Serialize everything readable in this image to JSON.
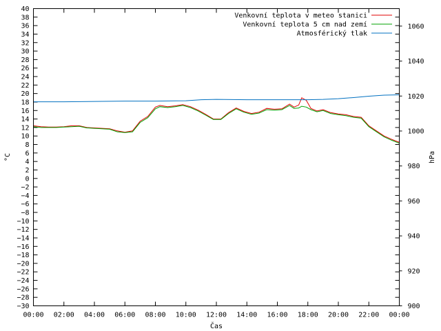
{
  "chart_data": {
    "type": "line",
    "title": "",
    "xlabel": "Čas",
    "ylabel": "°C",
    "y2label": "hPa",
    "x_ticks": [
      "00:00",
      "02:00",
      "04:00",
      "06:00",
      "08:00",
      "10:00",
      "12:00",
      "14:00",
      "16:00",
      "18:00",
      "20:00",
      "22:00",
      "00:00"
    ],
    "y_ticks": [
      40,
      38,
      36,
      34,
      32,
      30,
      28,
      26,
      24,
      22,
      20,
      18,
      16,
      14,
      12,
      10,
      8,
      6,
      4,
      2,
      0,
      -2,
      -4,
      -6,
      -8,
      -10,
      -12,
      -14,
      -16,
      -18,
      -20,
      -22,
      -24,
      -26,
      -28,
      -30
    ],
    "y2_ticks": [
      1060,
      1040,
      1020,
      1000,
      980,
      960,
      940,
      920,
      900
    ],
    "xlim_hours": [
      0,
      24
    ],
    "ylim": [
      -30,
      40
    ],
    "y2lim": [
      900,
      1070
    ],
    "legend_position": "top-right",
    "series": [
      {
        "name": "Venkovní teplota v meteo stanici",
        "axis": "left",
        "color": "#e00000",
        "points": [
          [
            0,
            12.4
          ],
          [
            0.5,
            12.2
          ],
          [
            1,
            12.1
          ],
          [
            1.5,
            12.1
          ],
          [
            2,
            12.2
          ],
          [
            2.5,
            12.4
          ],
          [
            3,
            12.4
          ],
          [
            3.5,
            12.0
          ],
          [
            4,
            11.9
          ],
          [
            4.5,
            11.8
          ],
          [
            5,
            11.7
          ],
          [
            5.5,
            11.2
          ],
          [
            6,
            10.9
          ],
          [
            6.5,
            11.2
          ],
          [
            7,
            13.5
          ],
          [
            7.5,
            14.6
          ],
          [
            8,
            16.8
          ],
          [
            8.3,
            17.2
          ],
          [
            8.8,
            16.9
          ],
          [
            9.3,
            17.1
          ],
          [
            9.8,
            17.4
          ],
          [
            10.3,
            16.9
          ],
          [
            10.8,
            16.1
          ],
          [
            11.3,
            15.1
          ],
          [
            11.8,
            14.0
          ],
          [
            12.3,
            14.0
          ],
          [
            12.8,
            15.5
          ],
          [
            13.3,
            16.6
          ],
          [
            13.8,
            15.8
          ],
          [
            14.3,
            15.3
          ],
          [
            14.8,
            15.6
          ],
          [
            15.3,
            16.5
          ],
          [
            15.8,
            16.3
          ],
          [
            16.3,
            16.4
          ],
          [
            16.8,
            17.5
          ],
          [
            17.1,
            16.8
          ],
          [
            17.4,
            17.3
          ],
          [
            17.6,
            19.0
          ],
          [
            17.9,
            18.4
          ],
          [
            18.2,
            16.5
          ],
          [
            18.6,
            15.9
          ],
          [
            19,
            16.2
          ],
          [
            19.5,
            15.5
          ],
          [
            20,
            15.2
          ],
          [
            20.5,
            15.0
          ],
          [
            21,
            14.6
          ],
          [
            21.5,
            14.4
          ],
          [
            22,
            12.4
          ],
          [
            22.5,
            11.2
          ],
          [
            23,
            10.0
          ],
          [
            23.5,
            9.2
          ],
          [
            24,
            8.5
          ]
        ]
      },
      {
        "name": "Venkovní teplota 5 cm nad zemí",
        "axis": "left",
        "color": "#00a000",
        "points": [
          [
            0,
            12.2
          ],
          [
            0.5,
            12.0
          ],
          [
            1,
            12.0
          ],
          [
            1.5,
            12.0
          ],
          [
            2,
            12.1
          ],
          [
            2.5,
            12.2
          ],
          [
            3,
            12.3
          ],
          [
            3.5,
            11.9
          ],
          [
            4,
            11.8
          ],
          [
            4.5,
            11.7
          ],
          [
            5,
            11.6
          ],
          [
            5.5,
            11.0
          ],
          [
            6,
            10.8
          ],
          [
            6.5,
            11.0
          ],
          [
            7,
            13.2
          ],
          [
            7.5,
            14.3
          ],
          [
            8,
            16.4
          ],
          [
            8.3,
            16.9
          ],
          [
            8.8,
            16.7
          ],
          [
            9.3,
            16.9
          ],
          [
            9.8,
            17.2
          ],
          [
            10.3,
            16.7
          ],
          [
            10.8,
            15.9
          ],
          [
            11.3,
            14.9
          ],
          [
            11.8,
            13.9
          ],
          [
            12.3,
            13.9
          ],
          [
            12.8,
            15.3
          ],
          [
            13.3,
            16.4
          ],
          [
            13.8,
            15.6
          ],
          [
            14.3,
            15.1
          ],
          [
            14.8,
            15.4
          ],
          [
            15.3,
            16.2
          ],
          [
            15.8,
            16.1
          ],
          [
            16.3,
            16.2
          ],
          [
            16.8,
            17.2
          ],
          [
            17.1,
            16.5
          ],
          [
            17.4,
            16.6
          ],
          [
            17.6,
            17.0
          ],
          [
            17.9,
            16.8
          ],
          [
            18.2,
            16.2
          ],
          [
            18.6,
            15.7
          ],
          [
            19,
            16.0
          ],
          [
            19.5,
            15.3
          ],
          [
            20,
            15.0
          ],
          [
            20.5,
            14.8
          ],
          [
            21,
            14.4
          ],
          [
            21.5,
            14.2
          ],
          [
            22,
            12.2
          ],
          [
            22.5,
            11.0
          ],
          [
            23,
            9.8
          ],
          [
            23.5,
            9.0
          ],
          [
            24,
            8.3
          ]
        ]
      },
      {
        "name": "Atmosférický tlak",
        "axis": "right",
        "color": "#0070c0",
        "points": [
          [
            0,
            1016.7
          ],
          [
            2,
            1016.7
          ],
          [
            4,
            1016.9
          ],
          [
            6,
            1017.1
          ],
          [
            8,
            1017.1
          ],
          [
            10,
            1017.3
          ],
          [
            11,
            1017.9
          ],
          [
            12,
            1018.1
          ],
          [
            14,
            1017.9
          ],
          [
            16,
            1017.9
          ],
          [
            18,
            1017.9
          ],
          [
            19,
            1018.1
          ],
          [
            20,
            1018.5
          ],
          [
            21,
            1019.1
          ],
          [
            22,
            1019.9
          ],
          [
            23,
            1020.5
          ],
          [
            24,
            1020.7
          ]
        ]
      }
    ]
  }
}
